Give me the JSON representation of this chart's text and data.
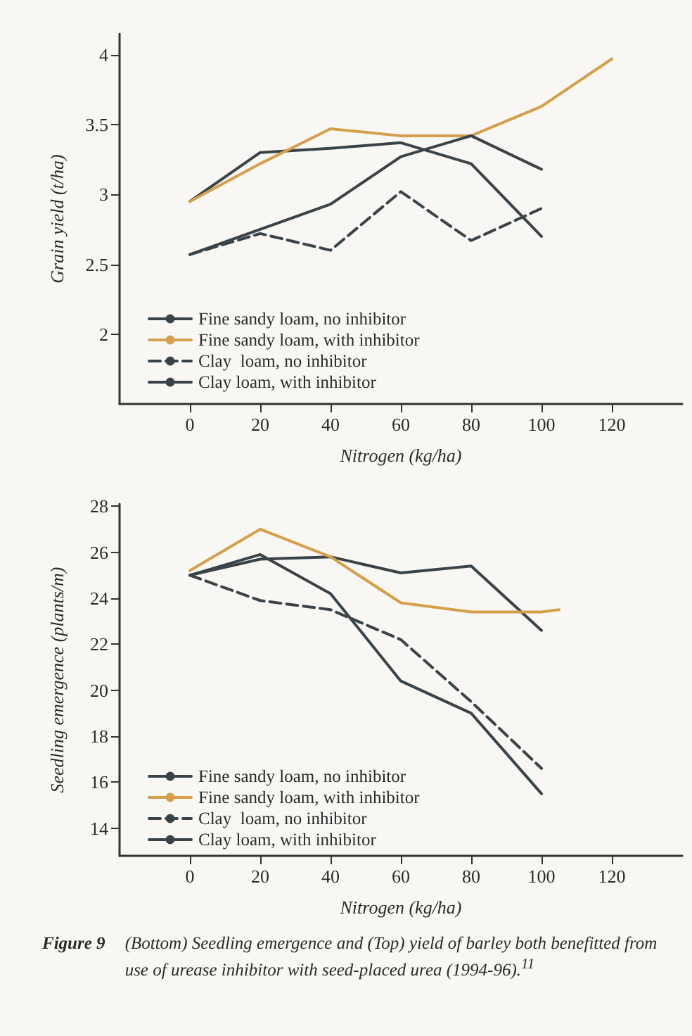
{
  "chart_data": [
    {
      "type": "line",
      "xlabel": "Nitrogen (kg/ha)",
      "ylabel": "Grain yield (t/ha)",
      "xlim": [
        -20,
        140
      ],
      "xticks": [
        0,
        20,
        40,
        60,
        80,
        100,
        120
      ],
      "ylim": [
        1.5,
        4.15
      ],
      "yticks": [
        2,
        2.5,
        3,
        3.5,
        4
      ],
      "grid": false,
      "legend": "bottom left",
      "marker": "none",
      "series": [
        {
          "name": "Fine sandy loam, no inhibitor",
          "color": "#3a4448",
          "x": [
            0,
            20,
            40,
            60,
            80,
            100
          ],
          "values": [
            2.95,
            3.3,
            3.33,
            3.37,
            3.22,
            2.7
          ]
        },
        {
          "name": "Fine sandy loam, with inhibitor",
          "color": "#d4a04c",
          "x": [
            0,
            20,
            40,
            60,
            80,
            100,
            120
          ],
          "values": [
            2.95,
            3.22,
            3.47,
            3.42,
            3.42,
            3.63,
            3.97
          ]
        },
        {
          "name": "Clay  loam, no inhibitor",
          "color": "#3a4448",
          "line_style": "dashed",
          "x": [
            0,
            20,
            40,
            60,
            80,
            100
          ],
          "values": [
            2.57,
            2.72,
            2.6,
            3.02,
            2.67,
            2.9
          ]
        },
        {
          "name": "Clay loam, with inhibitor",
          "color": "#3a4448",
          "x": [
            0,
            20,
            40,
            60,
            80,
            100
          ],
          "values": [
            2.57,
            2.75,
            2.93,
            3.27,
            3.42,
            3.18
          ]
        }
      ]
    },
    {
      "type": "line",
      "xlabel": "Nitrogen (kg/ha)",
      "ylabel": "Seedling emergence (plants/m)",
      "xlim": [
        -20,
        140
      ],
      "xticks": [
        0,
        20,
        40,
        60,
        80,
        100,
        120
      ],
      "ylim": [
        12.8,
        28.1
      ],
      "yticks": [
        14,
        16,
        18,
        20,
        22,
        24,
        26,
        28
      ],
      "grid": false,
      "legend": "bottom left",
      "marker": "none",
      "series": [
        {
          "name": "Fine sandy loam, no inhibitor",
          "color": "#3a4448",
          "x": [
            0,
            20,
            40,
            60,
            80,
            100
          ],
          "values": [
            25.0,
            25.7,
            25.8,
            25.1,
            25.4,
            22.6
          ]
        },
        {
          "name": "Fine sandy loam, with inhibitor",
          "color": "#d4a04c",
          "x": [
            0,
            20,
            40,
            60,
            80,
            100,
            105
          ],
          "values": [
            25.2,
            27.0,
            25.8,
            23.8,
            23.4,
            23.4,
            23.5
          ]
        },
        {
          "name": "Clay  loam, no inhibitor",
          "color": "#3a4448",
          "line_style": "dashed",
          "x": [
            0,
            20,
            40,
            60,
            80,
            100
          ],
          "values": [
            25.0,
            23.9,
            23.5,
            22.2,
            19.5,
            16.6
          ]
        },
        {
          "name": "Clay loam, with inhibitor",
          "color": "#3a4448",
          "x": [
            0,
            20,
            40,
            60,
            80,
            100
          ],
          "values": [
            25.0,
            25.9,
            24.2,
            20.4,
            19.0,
            15.5
          ]
        }
      ],
      "annotations": [
        "Figure 9",
        "(Bottom) Seedling emergence and (Top) yield of barley both benefitted from use of urease inhibitor with seed-placed urea (1994-96).$^{11}$"
      ]
    }
  ]
}
